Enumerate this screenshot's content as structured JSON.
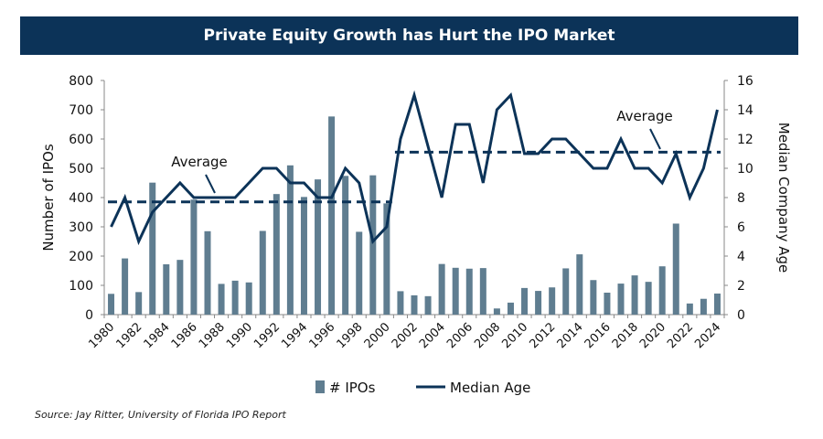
{
  "chart_data": {
    "type": "bar+line",
    "title": "Private Equity Growth has Hurt the IPO Market",
    "ylabel": "Number of IPOs",
    "y2label": "Median Company Age",
    "ylim": [
      0,
      800
    ],
    "y2lim": [
      0,
      16
    ],
    "yticks": [
      0,
      100,
      200,
      300,
      400,
      500,
      600,
      700,
      800
    ],
    "y2ticks": [
      0,
      2,
      4,
      6,
      8,
      10,
      12,
      14,
      16
    ],
    "categories": [
      1980,
      1981,
      1982,
      1983,
      1984,
      1985,
      1986,
      1987,
      1988,
      1989,
      1990,
      1991,
      1992,
      1993,
      1994,
      1995,
      1996,
      1997,
      1998,
      1999,
      2000,
      2001,
      2002,
      2003,
      2004,
      2005,
      2006,
      2007,
      2008,
      2009,
      2010,
      2011,
      2012,
      2013,
      2014,
      2015,
      2016,
      2017,
      2018,
      2019,
      2020,
      2021,
      2022,
      2023,
      2024
    ],
    "series": [
      {
        "name": "# IPOs",
        "type": "bar",
        "axis": "left",
        "color": "#5f7d90",
        "values": [
          71,
          192,
          77,
          451,
          172,
          187,
          393,
          285,
          105,
          116,
          110,
          286,
          412,
          510,
          402,
          462,
          677,
          474,
          283,
          476,
          380,
          80,
          66,
          63,
          173,
          160,
          157,
          159,
          21,
          41,
          91,
          81,
          93,
          158,
          206,
          118,
          75,
          106,
          134,
          112,
          165,
          311,
          38,
          54,
          72
        ]
      },
      {
        "name": "Median Age",
        "type": "line",
        "axis": "right",
        "color": "#0c3358",
        "values": [
          6,
          8,
          5,
          7,
          8,
          9,
          8,
          8,
          8,
          8,
          9,
          10,
          10,
          9,
          9,
          8,
          8,
          10,
          9,
          5,
          6,
          12,
          15,
          11.5,
          8,
          13,
          13,
          9,
          14,
          15,
          11,
          11,
          12,
          12,
          11,
          10,
          10,
          12,
          10,
          10,
          9,
          11,
          8,
          10,
          14
        ]
      }
    ],
    "averages": [
      {
        "label": "Average",
        "from": 1980,
        "to": 2000,
        "value": 7.7
      },
      {
        "label": "Average",
        "from": 2001,
        "to": 2024,
        "value": 11.1
      }
    ],
    "legend": "bottom",
    "grid": false
  },
  "source": "Source: Jay Ritter, University of Florida IPO Report"
}
